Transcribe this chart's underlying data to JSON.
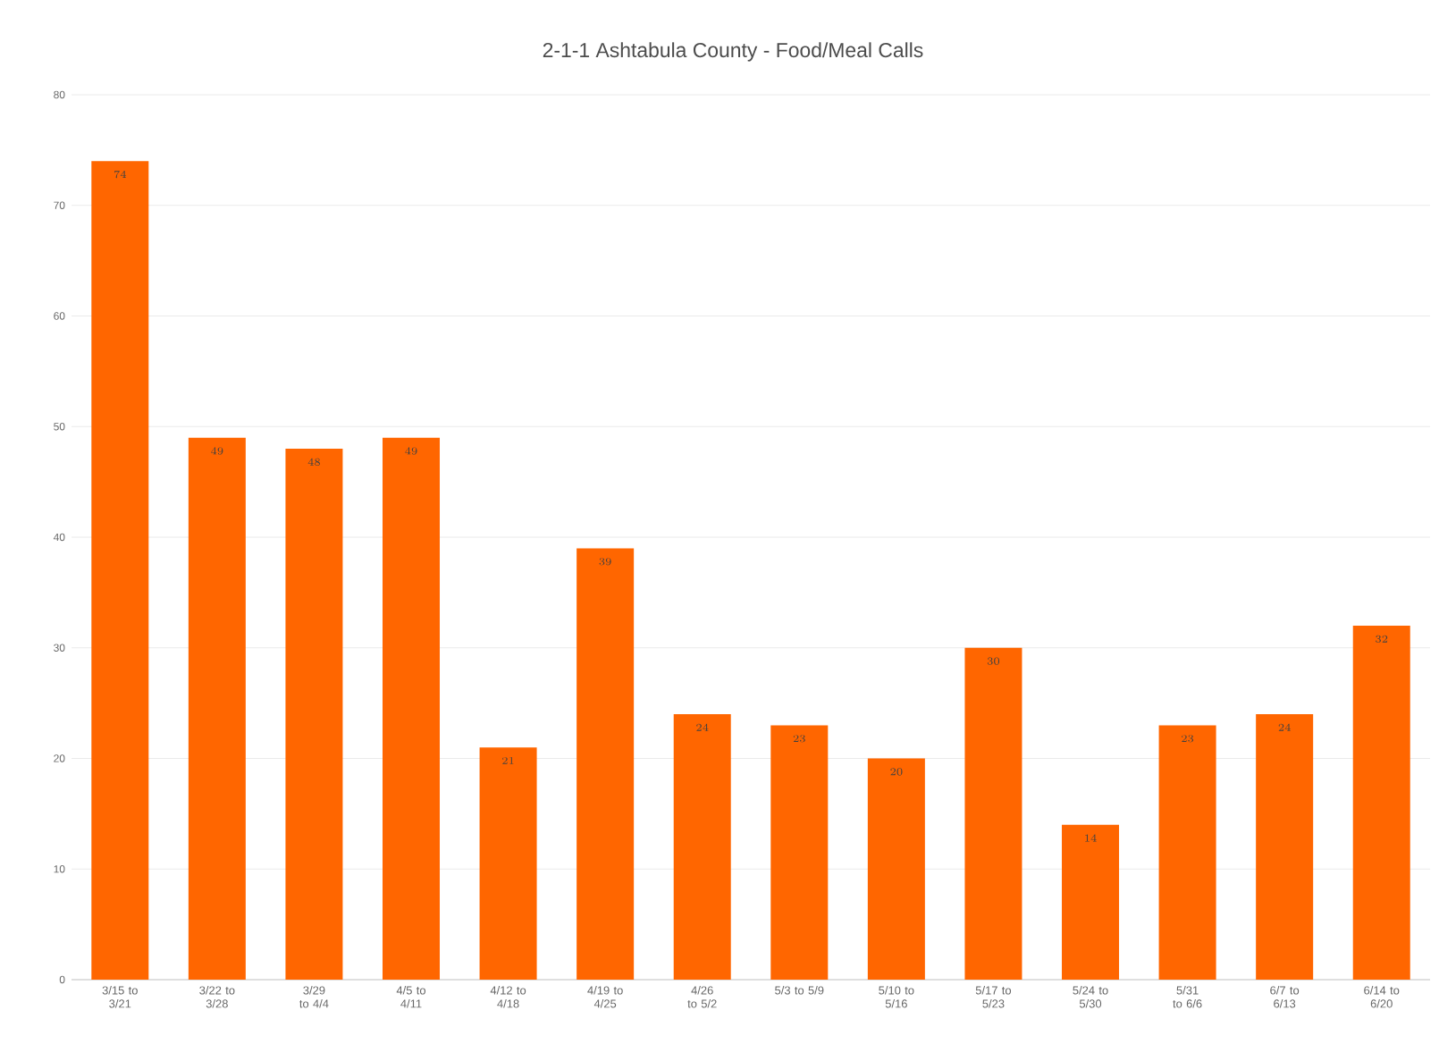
{
  "chart_data": {
    "type": "bar",
    "title": "2-1-1 Ashtabula County - Food/Meal Calls",
    "categories": [
      "3/15 to 3/21",
      "3/22 to 3/28",
      "3/29 to 4/4",
      "4/5 to 4/11",
      "4/12 to 4/18",
      "4/19 to 4/25",
      "4/26 to 5/2",
      "5/3 to 5/9",
      "5/10 to 5/16",
      "5/17 to 5/23",
      "5/24 to 5/30",
      "5/31 to 6/6",
      "6/7 to 6/13",
      "6/14 to 6/20"
    ],
    "values": [
      74,
      49,
      48,
      49,
      21,
      39,
      24,
      23,
      20,
      30,
      14,
      23,
      24,
      32
    ],
    "color": "#ff6600",
    "ylim": [
      0,
      80
    ],
    "yticks": [
      0,
      10,
      20,
      30,
      40,
      50,
      60,
      70,
      80
    ],
    "grid": "y",
    "data_labels": true
  }
}
